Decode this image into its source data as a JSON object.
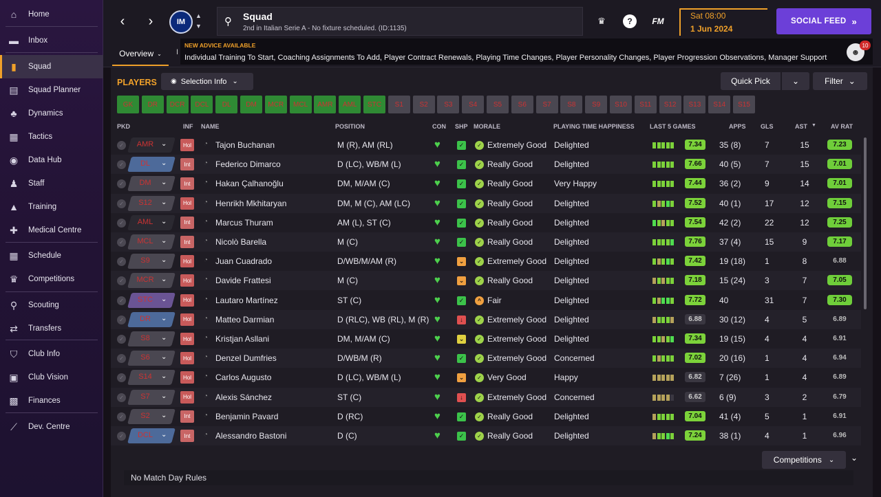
{
  "sidebar": {
    "items": [
      {
        "label": "Home",
        "icon": "home-icon",
        "glyph": "⌂"
      },
      {
        "label": "Inbox",
        "icon": "inbox-icon",
        "glyph": "▬"
      },
      {
        "label": "Squad",
        "icon": "shirt-icon",
        "glyph": "▮"
      },
      {
        "label": "Squad Planner",
        "icon": "clipboard-icon",
        "glyph": "▤"
      },
      {
        "label": "Dynamics",
        "icon": "people-icon",
        "glyph": "♣"
      },
      {
        "label": "Tactics",
        "icon": "tactics-board-icon",
        "glyph": "▦"
      },
      {
        "label": "Data Hub",
        "icon": "data-hub-icon",
        "glyph": "◉"
      },
      {
        "label": "Staff",
        "icon": "staff-icon",
        "glyph": "♟"
      },
      {
        "label": "Training",
        "icon": "training-cone-icon",
        "glyph": "▲"
      },
      {
        "label": "Medical Centre",
        "icon": "medical-kit-icon",
        "glyph": "✚"
      },
      {
        "label": "Schedule",
        "icon": "calendar-icon",
        "glyph": "▦"
      },
      {
        "label": "Competitions",
        "icon": "trophy-icon",
        "glyph": "♛"
      },
      {
        "label": "Scouting",
        "icon": "magnifier-icon",
        "glyph": "⚲"
      },
      {
        "label": "Transfers",
        "icon": "transfer-arrows-icon",
        "glyph": "⇄"
      },
      {
        "label": "Club Info",
        "icon": "club-shield-icon",
        "glyph": "⛉"
      },
      {
        "label": "Club Vision",
        "icon": "briefcase-icon",
        "glyph": "▣"
      },
      {
        "label": "Finances",
        "icon": "banknote-icon",
        "glyph": "▩"
      },
      {
        "label": "Dev. Centre",
        "icon": "dev-centre-icon",
        "glyph": "⟋"
      }
    ]
  },
  "topbar": {
    "club_badge_text": "IM",
    "title": "Squad",
    "subtitle": "2nd in Italian Serie A - No fixture scheduled. (ID:1135)",
    "fm_logo": "FM",
    "date_line1": "Sat 08:00",
    "date_line2": "1 Jun 2024",
    "social_feed": "SOCIAL FEED"
  },
  "tabs": {
    "overview": "Overview",
    "next": "I"
  },
  "advice": {
    "heading": "NEW ADVICE AVAILABLE",
    "text": "Individual Training To Start, Coaching Assignments To Add, Player Contract Renewals, Playing Time Changes, Player Personality Changes, Player Progression Observations, Manager Support",
    "badge": "10"
  },
  "toolbar": {
    "players_label": "PLAYERS",
    "selection_info": "Selection Info",
    "quick_pick": "Quick Pick",
    "filter": "Filter"
  },
  "position_chips": [
    "GK",
    "DR",
    "DCR",
    "DCL",
    "DL",
    "DM",
    "MCR",
    "MCL",
    "AMR",
    "AML",
    "STC",
    "S1",
    "S2",
    "S3",
    "S4",
    "S5",
    "S6",
    "S7",
    "S8",
    "S9",
    "S10",
    "S11",
    "S12",
    "S13",
    "S14",
    "S15"
  ],
  "table": {
    "headers": {
      "pkd": "PKD",
      "inf": "INF",
      "name": "NAME",
      "position": "POSITION",
      "con": "CON",
      "shp": "SHP",
      "morale": "MORALE",
      "happiness": "PLAYING TIME HAPPINESS",
      "last5": "LAST 5 GAMES",
      "apps": "APPS",
      "gls": "GLS",
      "ast": "AST",
      "avrat": "AV RAT"
    },
    "rows": [
      {
        "pkd": "AMR",
        "inf": "Hol",
        "name": "Tajon Buchanan",
        "position": "M (R), AM (RL)",
        "shp": "green",
        "morale": "Extremely Good",
        "happiness": "Delighted",
        "last5_avg": "7.34",
        "apps": "35 (8)",
        "gls": "7",
        "ast": "15",
        "avrat": "7.23"
      },
      {
        "pkd": "DL",
        "inf": "Int",
        "name": "Federico Dimarco",
        "position": "D (LC), WB/M (L)",
        "shp": "green",
        "morale": "Really Good",
        "happiness": "Delighted",
        "last5_avg": "7.66",
        "apps": "40 (5)",
        "gls": "7",
        "ast": "15",
        "avrat": "7.01"
      },
      {
        "pkd": "DM",
        "inf": "Int",
        "name": "Hakan Çalhanoğlu",
        "position": "DM, M/AM (C)",
        "shp": "green",
        "morale": "Really Good",
        "happiness": "Very Happy",
        "last5_avg": "7.44",
        "apps": "36 (2)",
        "gls": "9",
        "ast": "14",
        "avrat": "7.01"
      },
      {
        "pkd": "S12",
        "inf": "Hol",
        "name": "Henrikh Mkhitaryan",
        "position": "DM, M (C), AM (LC)",
        "shp": "green",
        "morale": "Really Good",
        "happiness": "Delighted",
        "last5_avg": "7.52",
        "apps": "40 (1)",
        "gls": "17",
        "ast": "12",
        "avrat": "7.15"
      },
      {
        "pkd": "AML",
        "inf": "Int",
        "name": "Marcus Thuram",
        "position": "AM (L), ST (C)",
        "shp": "green",
        "morale": "Really Good",
        "happiness": "Delighted",
        "last5_avg": "7.54",
        "apps": "42 (2)",
        "gls": "22",
        "ast": "12",
        "avrat": "7.25"
      },
      {
        "pkd": "MCL",
        "inf": "Int",
        "name": "Nicolò Barella",
        "position": "M (C)",
        "shp": "green",
        "morale": "Really Good",
        "happiness": "Delighted",
        "last5_avg": "7.76",
        "apps": "37 (4)",
        "gls": "15",
        "ast": "9",
        "avrat": "7.17"
      },
      {
        "pkd": "S9",
        "inf": "Hol",
        "name": "Juan Cuadrado",
        "position": "D/WB/M/AM (R)",
        "shp": "orange",
        "morale": "Extremely Good",
        "happiness": "Delighted",
        "last5_avg": "7.42",
        "apps": "19 (18)",
        "gls": "1",
        "ast": "8",
        "avrat": "6.88"
      },
      {
        "pkd": "MCR",
        "inf": "Hol",
        "name": "Davide Frattesi",
        "position": "M (C)",
        "shp": "orange",
        "morale": "Really Good",
        "happiness": "Delighted",
        "last5_avg": "7.18",
        "apps": "15 (24)",
        "gls": "3",
        "ast": "7",
        "avrat": "7.05"
      },
      {
        "pkd": "STC",
        "inf": "Hol",
        "name": "Lautaro Martínez",
        "position": "ST (C)",
        "shp": "green",
        "morale": "Fair",
        "happiness": "Delighted",
        "last5_avg": "7.72",
        "apps": "40",
        "gls": "31",
        "ast": "7",
        "avrat": "7.30"
      },
      {
        "pkd": "DR",
        "inf": "Hol",
        "name": "Matteo Darmian",
        "position": "D (RLC), WB (RL), M (R)",
        "shp": "red",
        "morale": "Extremely Good",
        "happiness": "Delighted",
        "last5_avg": "6.88",
        "apps": "30 (12)",
        "gls": "4",
        "ast": "5",
        "avrat": "6.89"
      },
      {
        "pkd": "S8",
        "inf": "Hol",
        "name": "Kristjan Asllani",
        "position": "DM, M/AM (C)",
        "shp": "yellow",
        "morale": "Extremely Good",
        "happiness": "Delighted",
        "last5_avg": "7.34",
        "apps": "19 (15)",
        "gls": "4",
        "ast": "4",
        "avrat": "6.91"
      },
      {
        "pkd": "S6",
        "inf": "Hol",
        "name": "Denzel Dumfries",
        "position": "D/WB/M (R)",
        "shp": "green",
        "morale": "Extremely Good",
        "happiness": "Concerned",
        "last5_avg": "7.02",
        "apps": "20 (16)",
        "gls": "1",
        "ast": "4",
        "avrat": "6.94"
      },
      {
        "pkd": "S14",
        "inf": "Hol",
        "name": "Carlos Augusto",
        "position": "D (LC), WB/M (L)",
        "shp": "orange",
        "morale": "Very Good",
        "happiness": "Happy",
        "last5_avg": "6.82",
        "apps": "7 (26)",
        "gls": "1",
        "ast": "4",
        "avrat": "6.89"
      },
      {
        "pkd": "S7",
        "inf": "Hol",
        "name": "Alexis Sánchez",
        "position": "ST (C)",
        "shp": "red",
        "morale": "Extremely Good",
        "happiness": "Concerned",
        "last5_avg": "6.62",
        "apps": "6 (9)",
        "gls": "3",
        "ast": "2",
        "avrat": "6.79"
      },
      {
        "pkd": "S2",
        "inf": "Int",
        "name": "Benjamin Pavard",
        "position": "D (RC)",
        "shp": "green",
        "morale": "Really Good",
        "happiness": "Delighted",
        "last5_avg": "7.04",
        "apps": "41 (4)",
        "gls": "5",
        "ast": "1",
        "avrat": "6.91"
      },
      {
        "pkd": "DCL",
        "inf": "Int",
        "name": "Alessandro Bastoni",
        "position": "D (C)",
        "shp": "green",
        "morale": "Really Good",
        "happiness": "Delighted",
        "last5_avg": "7.24",
        "apps": "38 (1)",
        "gls": "4",
        "ast": "1",
        "avrat": "6.96"
      }
    ]
  },
  "bottom": {
    "competitions": "Competitions",
    "match_day_rules": "No Match Day Rules"
  },
  "colors": {
    "accent": "#f0a12a",
    "brand_purple": "#6c3fd8",
    "good_green": "#6fce3a"
  }
}
